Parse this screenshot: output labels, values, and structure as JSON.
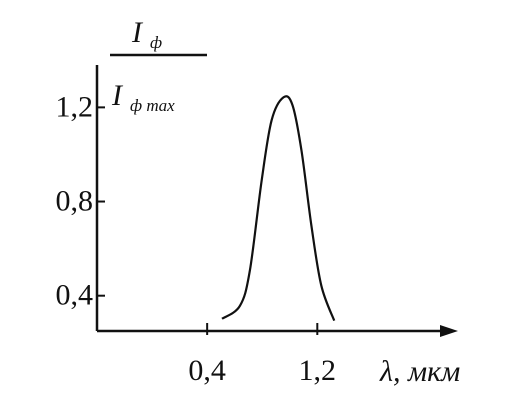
{
  "chart_data": {
    "type": "line",
    "ylabel": {
      "numerator": "I",
      "numerator_sub": "ф",
      "denominator": "I",
      "denominator_sub": "ф max"
    },
    "xlabel": "λ, мкм",
    "x": [
      0.508,
      0.638,
      0.71,
      0.796,
      0.868,
      0.955,
      1.02,
      1.085,
      1.157,
      1.229,
      1.323
    ],
    "values": [
      0.302,
      0.357,
      0.506,
      0.89,
      1.145,
      1.243,
      1.209,
      1.017,
      0.698,
      0.443,
      0.294
    ],
    "color": "#111111",
    "xlim": [
      -0.4,
      2.2
    ],
    "ylim": [
      0.25,
      1.38
    ],
    "xticks": [
      {
        "value": 0.4,
        "label": "0,4"
      },
      {
        "value": 1.2,
        "label": "1,2"
      }
    ],
    "yticks": [
      {
        "value": 0.4,
        "label": "0,4"
      },
      {
        "value": 0.8,
        "label": "0,8"
      },
      {
        "value": 1.2,
        "label": "1,2"
      }
    ]
  }
}
